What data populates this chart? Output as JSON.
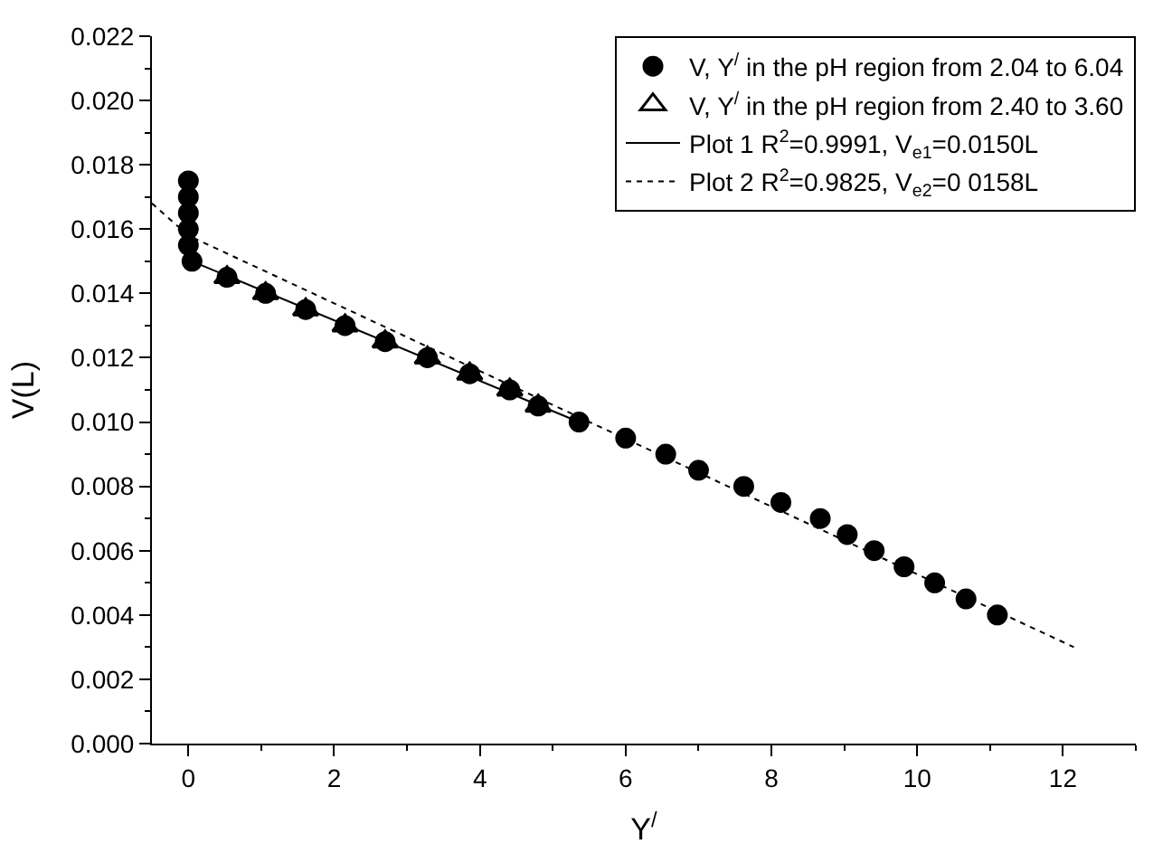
{
  "chart_data": {
    "type": "scatter",
    "xlabel": "Y$^{/}$",
    "ylabel": "V(L)",
    "xlim": [
      -0.5,
      13
    ],
    "xticks": [
      0,
      2,
      4,
      6,
      8,
      10,
      12
    ],
    "ylim": [
      0,
      0.022
    ],
    "yticks": [
      {
        "value": 0,
        "label": "0.000"
      },
      {
        "value": 0.002,
        "label": "0.002"
      },
      {
        "value": 0.004,
        "label": "0.004"
      },
      {
        "value": 0.006,
        "label": "0.006"
      },
      {
        "value": 0.008,
        "label": "0.008"
      },
      {
        "value": 0.01,
        "label": "0.010"
      },
      {
        "value": 0.012,
        "label": "0.012"
      },
      {
        "value": 0.014,
        "label": "0.014"
      },
      {
        "value": 0.016,
        "label": "0.016"
      },
      {
        "value": 0.018,
        "label": "0.018"
      },
      {
        "value": 0.02,
        "label": "0.020"
      },
      {
        "value": 0.022,
        "label": "0.022"
      }
    ],
    "legend": "top right",
    "series": [
      {
        "name": "V, Y$^{/}$ in the pH region from 2.04 to 6.04",
        "marker": "circle",
        "color": "#000000",
        "x": [
          0,
          0,
          0,
          0,
          0,
          0.05,
          0.53,
          1.06,
          1.61,
          2.15,
          2.7,
          3.28,
          3.86,
          4.41,
          4.8,
          5.36,
          6.0,
          6.55,
          7.0,
          7.62,
          8.13,
          8.67,
          9.04,
          9.41,
          9.82,
          10.24,
          10.67,
          11.1
        ],
        "values": [
          0.0175,
          0.017,
          0.0165,
          0.016,
          0.0155,
          0.015,
          0.0145,
          0.014,
          0.0135,
          0.013,
          0.0125,
          0.012,
          0.0115,
          0.011,
          0.0105,
          0.01,
          0.0095,
          0.009,
          0.0085,
          0.008,
          0.0075,
          0.007,
          0.0065,
          0.006,
          0.0055,
          0.005,
          0.0045,
          0.004
        ]
      },
      {
        "name": "V, Y$^{/}$ in the pH region from 2.40 to 3.60",
        "marker": "triangle",
        "color": "#000000",
        "x": [
          0.53,
          1.06,
          1.61,
          2.15,
          2.7,
          3.28,
          3.86,
          4.41,
          4.8
        ],
        "values": [
          0.0145,
          0.014,
          0.0135,
          0.013,
          0.0125,
          0.012,
          0.0115,
          0.011,
          0.0105
        ]
      },
      {
        "name": "Plot 1 R$^{2}$=0.9991, V$_{e1}$=0.0150L",
        "type": "line",
        "line_style": "solid",
        "color": "#000000",
        "x": [
          0.05,
          5.36
        ],
        "values": [
          0.015,
          0.01
        ]
      },
      {
        "name": "Plot 2 R$^{2}$=0.9825, V$_{e2}$=0 0158L",
        "type": "line",
        "line_style": "dotted",
        "color": "#000000",
        "x": [
          -0.5,
          0,
          12.15
        ],
        "values": [
          0.0168,
          0.0158,
          0.003
        ]
      }
    ]
  }
}
